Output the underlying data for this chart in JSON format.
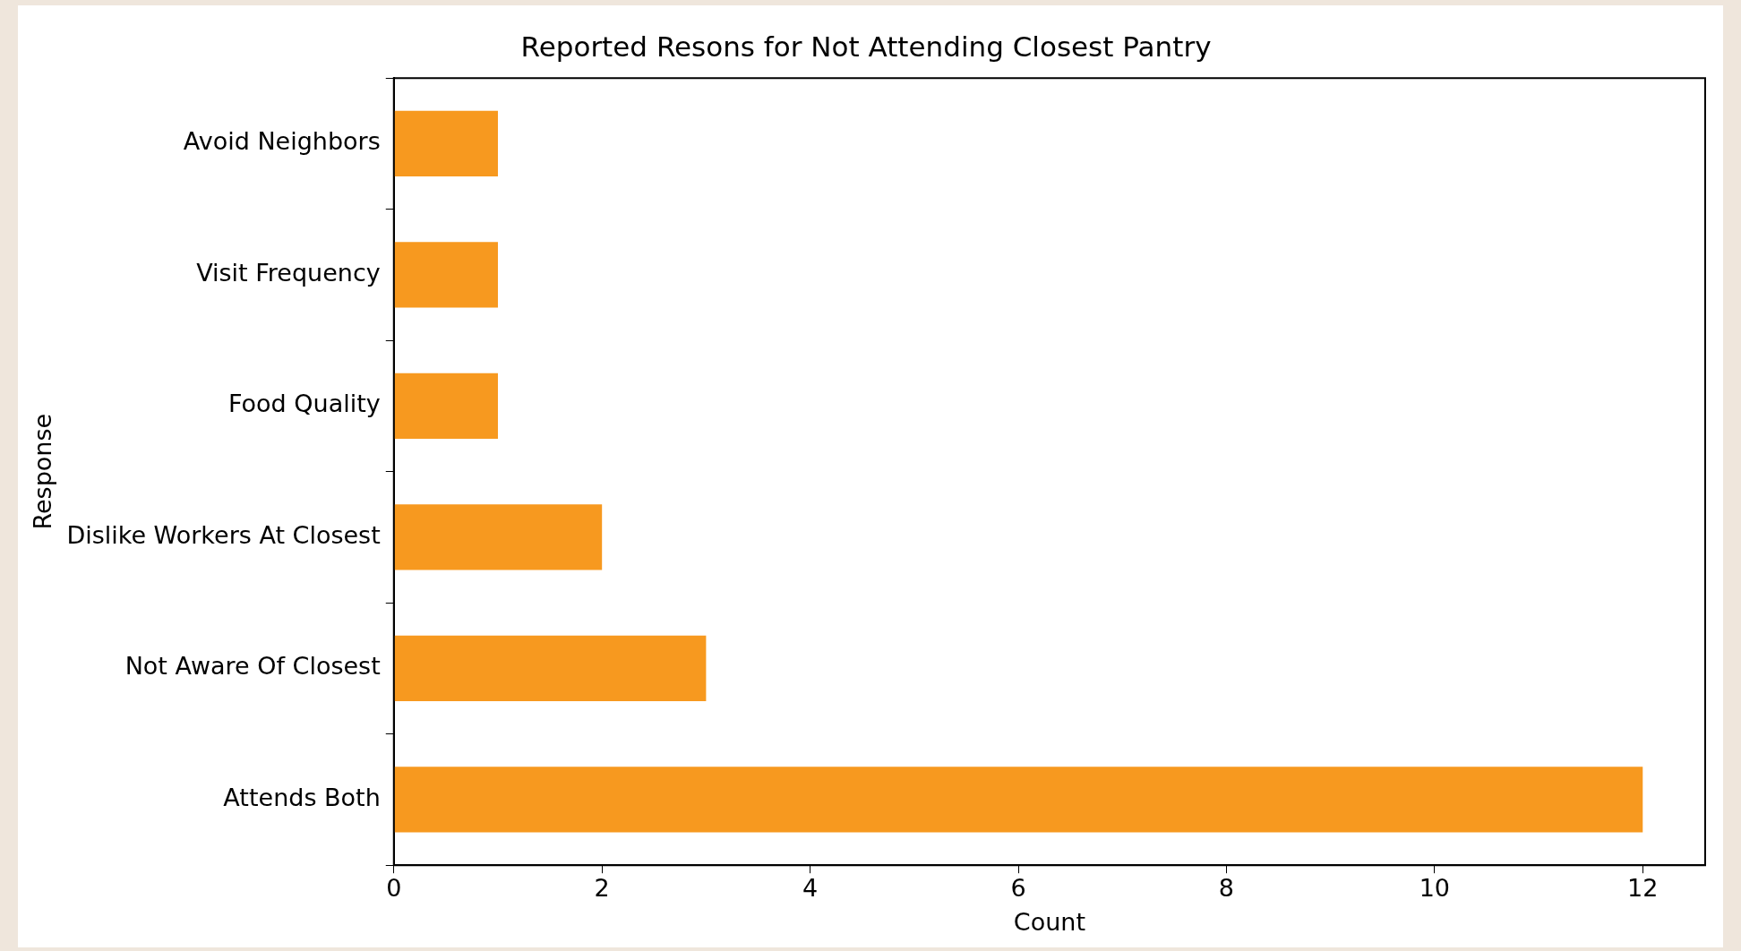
{
  "chart_data": {
    "type": "bar",
    "orientation": "horizontal",
    "title": "Reported Resons for Not Attending Closest Pantry",
    "xlabel": "Count",
    "ylabel": "Response",
    "categories": [
      "Avoid Neighbors",
      "Visit Frequency",
      "Food Quality",
      "Dislike Workers At Closest",
      "Not Aware Of Closest",
      "Attends Both"
    ],
    "values": [
      1,
      1,
      1,
      2,
      3,
      12
    ],
    "color": "#f7991f",
    "xlim": [
      0,
      12.6
    ],
    "xticks": [
      0,
      2,
      4,
      6,
      8,
      10,
      12
    ],
    "grid": false,
    "legend": false
  }
}
